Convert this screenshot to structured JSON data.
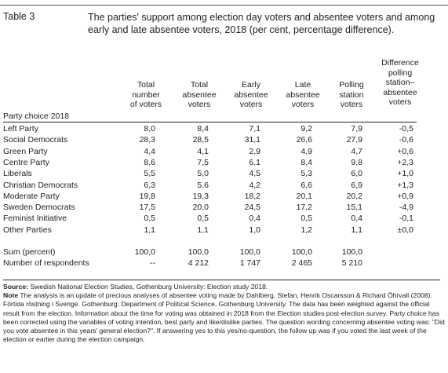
{
  "table_label": "Table 3",
  "title": "The parties' support among election day voters and absentee voters and among early and late absentee voters, 2018 (per cent, percentage difference).",
  "columns": {
    "party": [
      "Party choice 2018"
    ],
    "total": [
      "Total",
      "number",
      "of voters"
    ],
    "absentee": [
      "Total",
      "absentee",
      "voters"
    ],
    "early": [
      "Early",
      "absentee",
      "voters"
    ],
    "late": [
      "Late",
      "absentee",
      "voters"
    ],
    "polling": [
      "Polling",
      "station",
      "voters"
    ],
    "diff": [
      "Difference",
      "polling",
      "station–",
      "absentee",
      "voters"
    ]
  },
  "rows": [
    [
      "Left Party",
      "8,0",
      "8,4",
      "7,1",
      "9,2",
      "7,9",
      "-0,5"
    ],
    [
      "Social Democrats",
      "28,3",
      "28,5",
      "31,1",
      "26,6",
      "27,9",
      "-0,6"
    ],
    [
      "Green Party",
      "4,4",
      "4,1",
      "2,9",
      "4,9",
      "4,7",
      "+0,6"
    ],
    [
      "Centre Party",
      "8,6",
      "7,5",
      "6,1",
      "8,4",
      "9,8",
      "+2,3"
    ],
    [
      "Liberals",
      "5,5",
      "5,0",
      "4,5",
      "5,3",
      "6,0",
      "+1,0"
    ],
    [
      "Christian Democrats",
      "6,3",
      "5,6",
      "4,2",
      "6,6",
      "6,9",
      "+1,3"
    ],
    [
      "Moderate Party",
      "19,8",
      "19,3",
      "18,2",
      "20,1",
      "20,2",
      "+0,9"
    ],
    [
      "Sweden Democrats",
      "17,5",
      "20,0",
      "24,5",
      "17,2",
      "15,1",
      "-4,9"
    ],
    [
      "Feminist Initiative",
      "0,5",
      "0,5",
      "0,4",
      "0,5",
      "0,4",
      "-0,1"
    ],
    [
      "Other Parties",
      "1,1",
      "1,1",
      "1,0",
      "1,2",
      "1,1",
      "±0,0"
    ]
  ],
  "summary_rows": [
    [
      "Sum (percent)",
      "100,0",
      "100,0",
      "100,0",
      "100,0",
      "100,0",
      ""
    ],
    [
      "Number of respondents",
      "--",
      "4 212",
      "1 747",
      "2 465",
      "5 210",
      ""
    ]
  ],
  "source_label": "Source:",
  "source_text": " Swedish National Election Studies, Gothenburg University: Election study 2018.",
  "note_label": "Note",
  "note_text": " The analysis is an update of precious analyses of absentee voting made by Dahlberg, Stefan, Henrik Oscarsson & Richard Öhrvall (2008). Förtida röstning i Sverige. Gothenburg: Department of Political Science, Gothenburg University. The data has been weighted against the official result from the election. Information about the time for voting was obtained in 2018 from the Election studies post-election survey. Party choice has been corrected using the variables of voting intention, best party and like/dislike parties. The question wording concerning absentee voting was: \"Did you vote absentee in this years' general election?\". If answering yes to this yes/no-question, the follow up was if you voted the last week of the election or earlier during the election campaign."
}
